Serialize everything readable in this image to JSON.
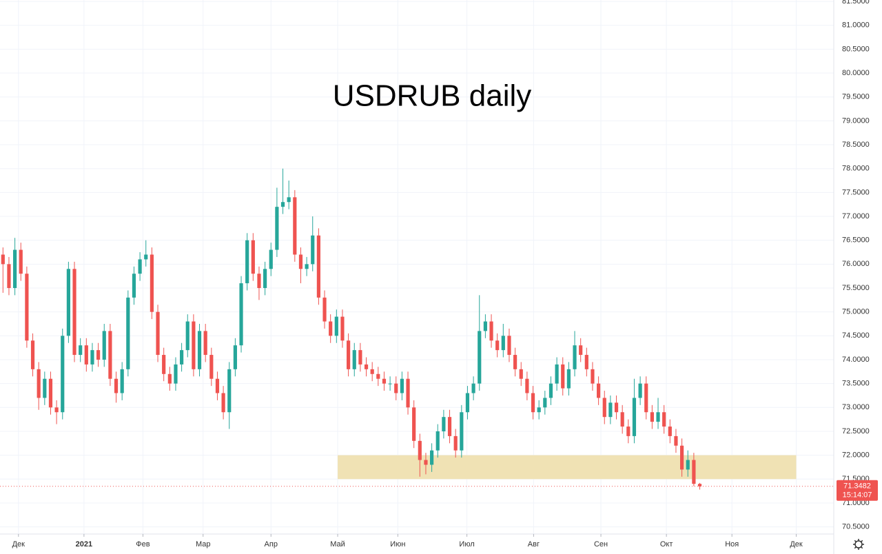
{
  "chart_data": {
    "type": "candlestick",
    "title": "USDRUB daily",
    "up_color": "#26a69a",
    "down_color": "#ef5350",
    "grid": true,
    "xlim": [
      -0.5,
      139.5
    ],
    "xticks": [
      {
        "value": 2.6,
        "label": "Дек"
      },
      {
        "value": 13.6,
        "label": "2021"
      },
      {
        "value": 23.5,
        "label": "Фев"
      },
      {
        "value": 33.6,
        "label": "Мар"
      },
      {
        "value": 45.0,
        "label": "Апр"
      },
      {
        "value": 56.2,
        "label": "Май"
      },
      {
        "value": 66.3,
        "label": "Июн"
      },
      {
        "value": 77.9,
        "label": "Июл"
      },
      {
        "value": 89.1,
        "label": "Авг"
      },
      {
        "value": 100.4,
        "label": "Сен"
      },
      {
        "value": 111.4,
        "label": "Окт"
      },
      {
        "value": 122.4,
        "label": "Ноя"
      },
      {
        "value": 133.2,
        "label": "Дек"
      }
    ],
    "ylim": [
      70.35,
      81.53
    ],
    "yticks": [
      {
        "value": 70.5,
        "label": "70.5000"
      },
      {
        "value": 71,
        "label": "71.0000"
      },
      {
        "value": 71.5,
        "label": "71.5000"
      },
      {
        "value": 72,
        "label": "72.0000"
      },
      {
        "value": 72.5,
        "label": "72.5000"
      },
      {
        "value": 73,
        "label": "73.0000"
      },
      {
        "value": 73.5,
        "label": "73.5000"
      },
      {
        "value": 74,
        "label": "74.0000"
      },
      {
        "value": 74.5,
        "label": "74.5000"
      },
      {
        "value": 75,
        "label": "75.0000"
      },
      {
        "value": 75.5,
        "label": "75.5000"
      },
      {
        "value": 76,
        "label": "76.0000"
      },
      {
        "value": 76.5,
        "label": "76.5000"
      },
      {
        "value": 77,
        "label": "77.0000"
      },
      {
        "value": 77.5,
        "label": "77.5000"
      },
      {
        "value": 78,
        "label": "78.0000"
      },
      {
        "value": 78.5,
        "label": "78.5000"
      },
      {
        "value": 79,
        "label": "79.0000"
      },
      {
        "value": 79.5,
        "label": "79.5000"
      },
      {
        "value": 80,
        "label": "80.0000"
      },
      {
        "value": 80.5,
        "label": "80.5000"
      },
      {
        "value": 81,
        "label": "81.0000"
      },
      {
        "value": 81.5,
        "label": "81.5000"
      }
    ],
    "zone": {
      "x": [
        56.2,
        133.2
      ],
      "y": [
        71.5,
        72.0
      ],
      "color": "#f0e2b4"
    },
    "open": [
      76.2,
      76.0,
      75.5,
      76.3,
      75.8,
      74.4,
      73.8,
      73.2,
      73.6,
      73.0,
      72.9,
      74.5,
      75.9,
      74.1,
      74.3,
      73.9,
      74.2,
      74.0,
      74.6,
      73.6,
      73.3,
      73.8,
      75.3,
      75.8,
      76.1,
      76.2,
      75.0,
      74.1,
      73.7,
      73.5,
      73.9,
      74.2,
      74.8,
      73.8,
      74.6,
      74.1,
      73.6,
      73.3,
      72.9,
      73.8,
      74.3,
      75.6,
      76.5,
      75.8,
      75.5,
      75.9,
      76.3,
      77.2,
      77.3,
      77.4,
      76.2,
      75.9,
      76.0,
      76.6,
      75.3,
      74.8,
      74.5,
      74.9,
      74.4,
      73.8,
      74.2,
      73.9,
      73.8,
      73.7,
      73.6,
      73.5,
      73.5,
      73.3,
      73.6,
      73.0,
      72.3,
      71.9,
      71.8,
      72.1,
      72.5,
      72.8,
      72.4,
      72.1,
      72.9,
      73.3,
      73.5,
      74.6,
      74.8,
      74.4,
      74.2,
      74.5,
      74.1,
      73.8,
      73.6,
      73.3,
      72.9,
      73.0,
      73.2,
      73.5,
      73.9,
      73.4,
      73.8,
      74.3,
      74.1,
      73.8,
      73.5,
      73.2,
      72.8,
      73.1,
      72.9,
      72.6,
      72.4,
      73.2,
      73.5,
      72.9,
      72.7,
      72.9,
      72.6,
      72.4,
      72.2,
      71.7,
      71.9,
      71.4
    ],
    "high": [
      76.35,
      76.15,
      76.55,
      76.45,
      75.95,
      74.55,
      73.95,
      73.75,
      73.75,
      73.15,
      74.65,
      76.05,
      76.05,
      74.45,
      74.45,
      74.35,
      74.35,
      74.75,
      74.75,
      73.75,
      73.95,
      75.45,
      75.95,
      76.25,
      76.5,
      76.35,
      75.15,
      74.25,
      73.85,
      74.05,
      74.35,
      74.95,
      74.95,
      74.75,
      74.75,
      74.25,
      73.75,
      73.45,
      73.95,
      74.45,
      75.75,
      76.65,
      76.65,
      75.95,
      76.05,
      76.45,
      77.6,
      78.0,
      77.75,
      77.55,
      76.35,
      76.15,
      77.0,
      76.75,
      75.45,
      74.95,
      75.05,
      75.05,
      74.55,
      74.35,
      74.35,
      74.05,
      73.95,
      73.85,
      73.75,
      73.65,
      73.65,
      73.75,
      73.75,
      73.15,
      72.45,
      72.05,
      72.25,
      72.65,
      72.95,
      72.95,
      72.55,
      73.05,
      73.45,
      73.65,
      75.35,
      74.95,
      74.95,
      74.55,
      74.75,
      74.65,
      74.25,
      73.95,
      73.75,
      73.45,
      73.15,
      73.35,
      73.65,
      74.05,
      74.05,
      73.95,
      74.6,
      74.45,
      74.25,
      73.95,
      73.65,
      73.35,
      73.25,
      73.25,
      73.05,
      72.75,
      73.6,
      73.65,
      73.65,
      73.05,
      73.2,
      73.05,
      72.75,
      72.55,
      72.35,
      72.1,
      72.05,
      71.42
    ],
    "low": [
      75.4,
      75.35,
      75.35,
      75.65,
      74.25,
      73.65,
      72.95,
      73.05,
      72.85,
      72.65,
      72.75,
      74.35,
      73.95,
      73.95,
      73.75,
      73.75,
      73.85,
      73.85,
      73.45,
      73.1,
      73.15,
      73.65,
      75.15,
      75.65,
      75.95,
      74.85,
      73.95,
      73.55,
      73.35,
      73.35,
      73.75,
      74.05,
      73.65,
      73.65,
      73.95,
      73.45,
      73.15,
      72.75,
      72.55,
      73.65,
      74.15,
      75.45,
      75.65,
      75.25,
      75.35,
      75.75,
      76.15,
      77.05,
      77.15,
      76.05,
      75.6,
      75.75,
      75.85,
      75.15,
      74.65,
      74.35,
      74.35,
      74.25,
      73.65,
      73.65,
      73.75,
      73.65,
      73.55,
      73.45,
      73.35,
      73.35,
      73.15,
      73.15,
      72.85,
      72.15,
      71.55,
      71.6,
      71.65,
      71.95,
      72.35,
      72.25,
      71.95,
      71.95,
      72.75,
      73.15,
      73.35,
      74.45,
      74.25,
      74.05,
      74.05,
      73.95,
      73.65,
      73.45,
      73.15,
      72.75,
      72.75,
      72.85,
      73.05,
      73.35,
      73.25,
      73.25,
      73.65,
      73.95,
      73.65,
      73.35,
      73.05,
      72.65,
      72.65,
      72.75,
      72.45,
      72.25,
      72.25,
      73.05,
      72.75,
      72.55,
      72.55,
      72.45,
      72.25,
      72.05,
      71.55,
      71.55,
      71.35,
      71.28
    ],
    "close": [
      76.0,
      75.5,
      76.3,
      75.8,
      74.4,
      73.8,
      73.2,
      73.6,
      73.0,
      72.9,
      74.5,
      75.9,
      74.1,
      74.3,
      73.9,
      74.2,
      74.0,
      74.6,
      73.6,
      73.3,
      73.8,
      75.3,
      75.8,
      76.1,
      76.2,
      75.0,
      74.1,
      73.7,
      73.5,
      73.9,
      74.2,
      74.8,
      73.8,
      74.6,
      74.1,
      73.6,
      73.3,
      72.9,
      73.8,
      74.3,
      75.6,
      76.5,
      75.8,
      75.5,
      75.9,
      76.3,
      77.2,
      77.3,
      77.4,
      76.2,
      75.9,
      76.0,
      76.6,
      75.3,
      74.8,
      74.5,
      74.9,
      74.4,
      73.8,
      74.2,
      73.9,
      73.8,
      73.7,
      73.6,
      73.5,
      73.5,
      73.3,
      73.6,
      73.0,
      72.3,
      71.9,
      71.8,
      72.1,
      72.5,
      72.8,
      72.4,
      72.1,
      72.9,
      73.3,
      73.5,
      74.6,
      74.8,
      74.4,
      74.2,
      74.5,
      74.1,
      73.8,
      73.6,
      73.3,
      72.9,
      73.0,
      73.2,
      73.5,
      73.9,
      73.4,
      73.8,
      74.3,
      74.1,
      73.8,
      73.5,
      73.2,
      72.8,
      73.1,
      72.9,
      72.6,
      72.4,
      73.2,
      73.5,
      72.9,
      72.7,
      72.9,
      72.6,
      72.4,
      72.2,
      71.7,
      71.9,
      71.4,
      71.3482
    ],
    "last_price": 71.3482,
    "countdown": "15:14:07"
  }
}
